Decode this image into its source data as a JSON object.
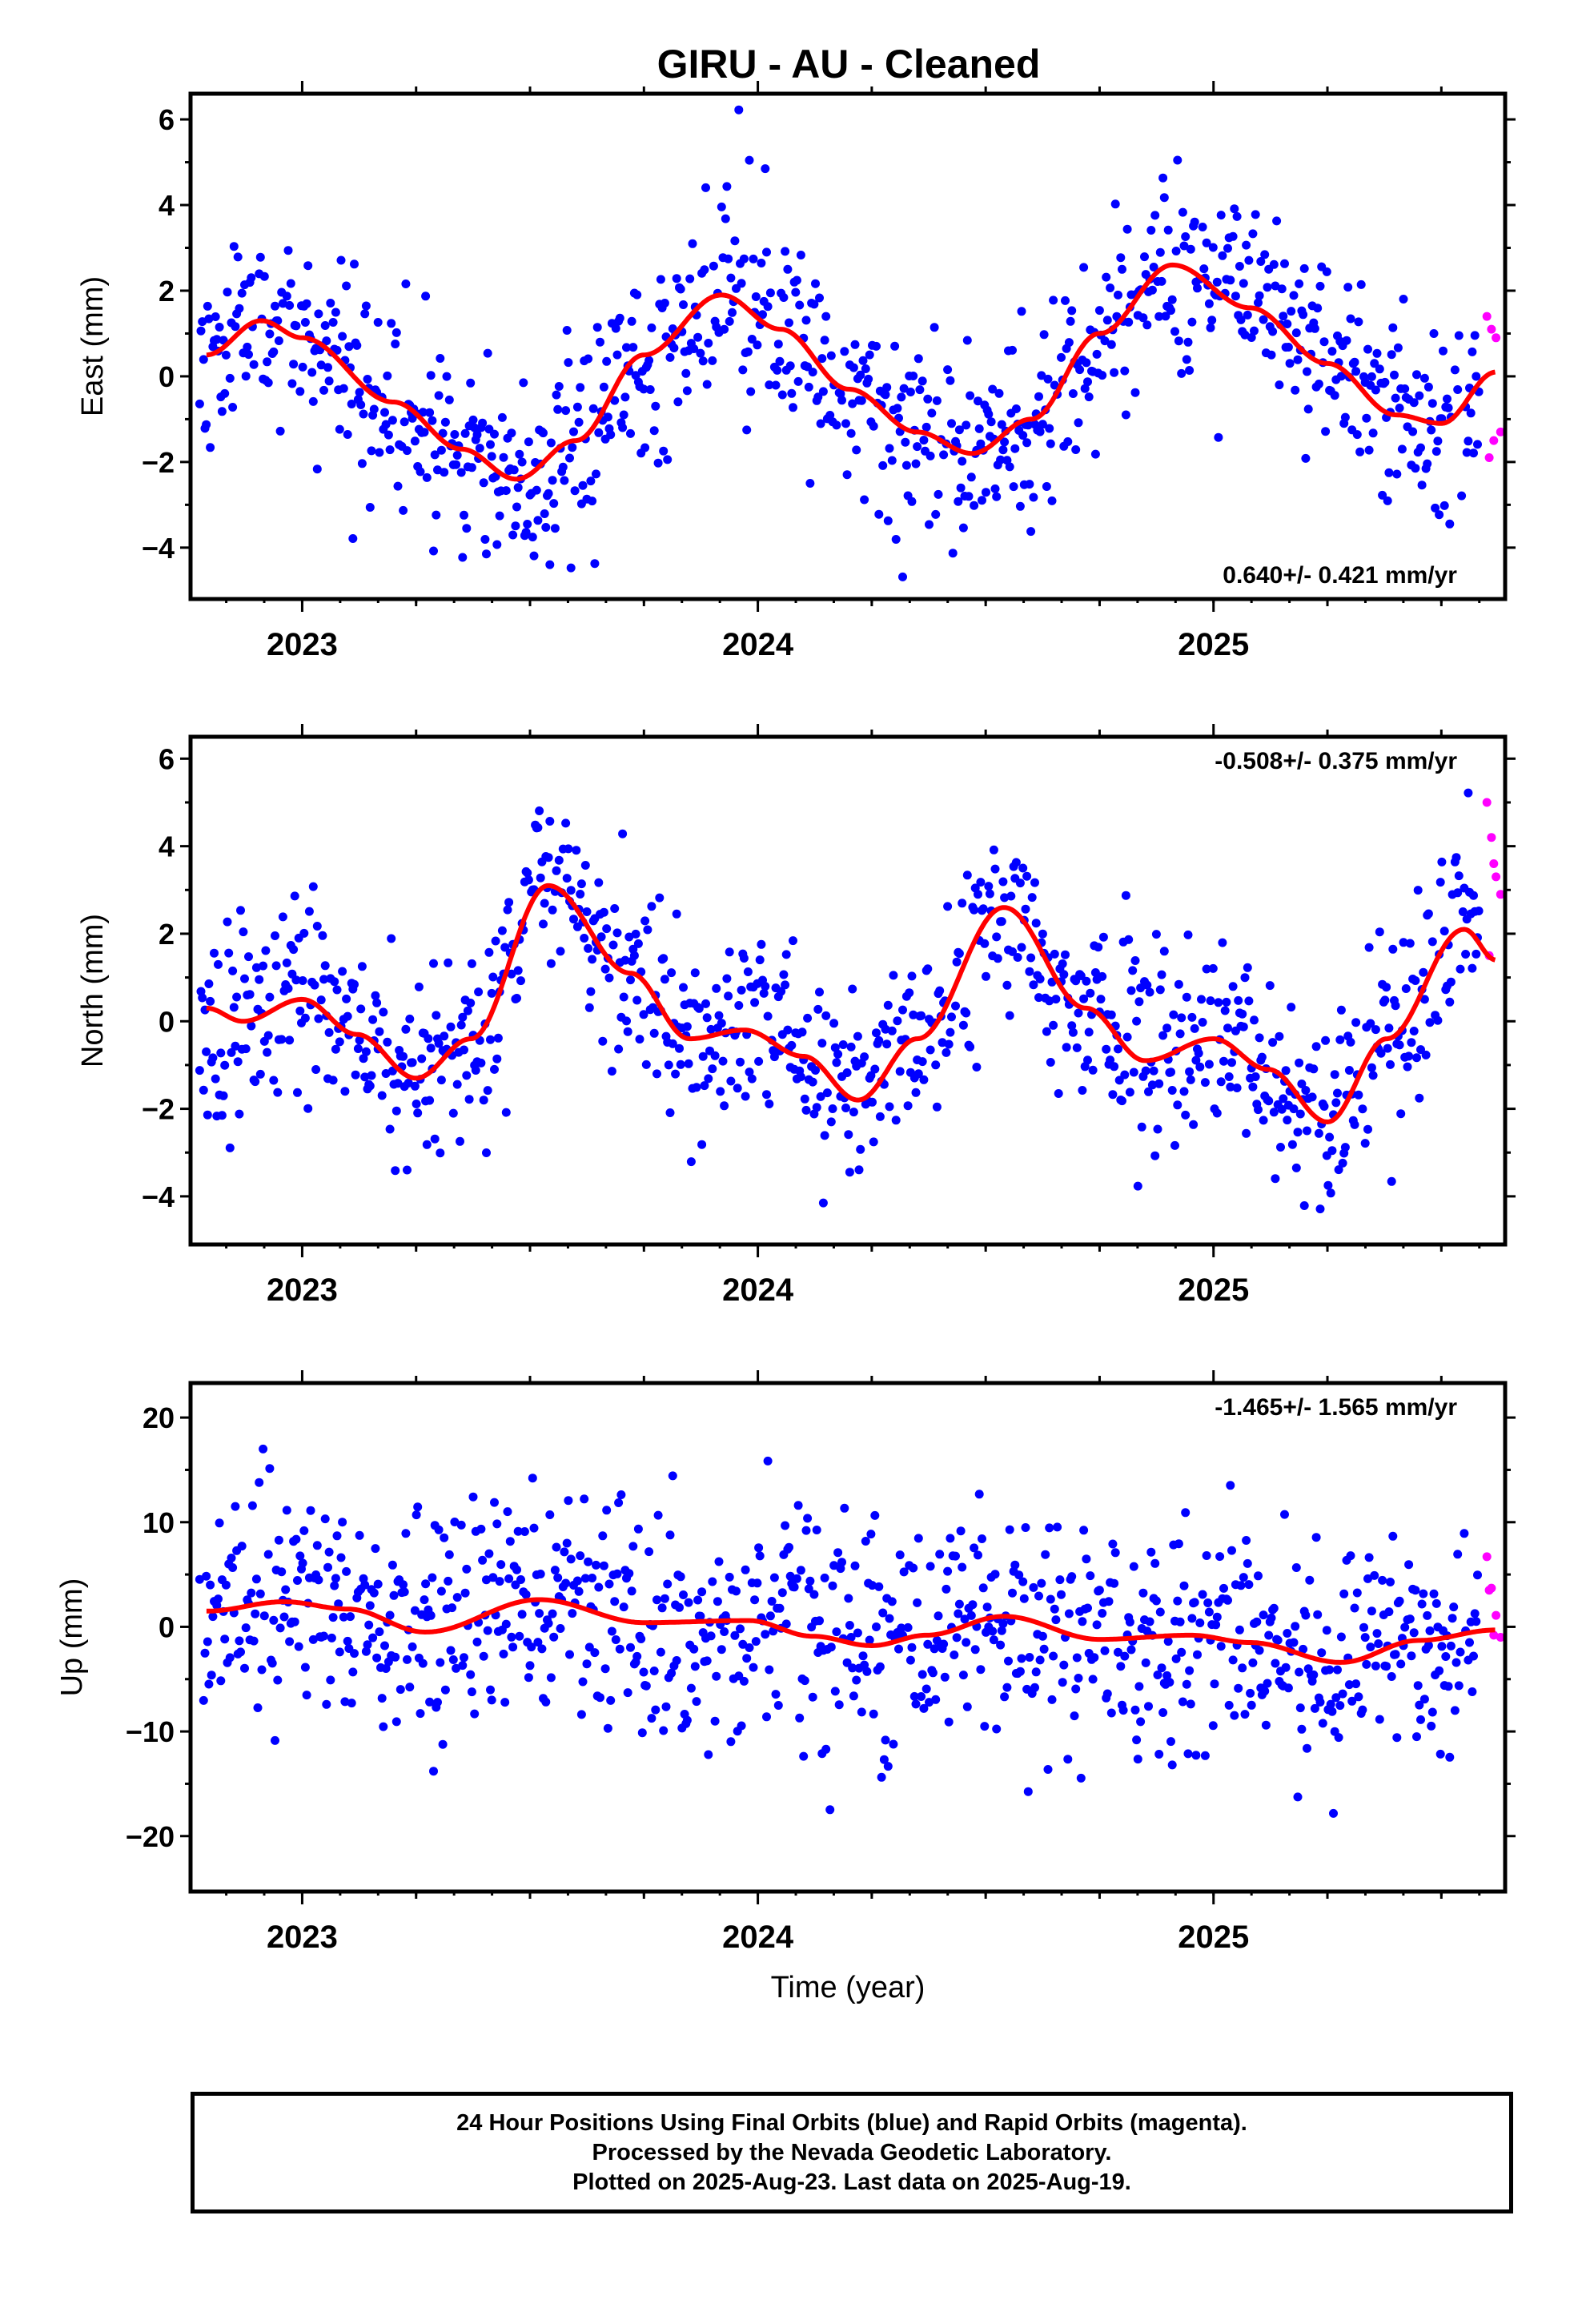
{
  "title": "GIRU  - AU - Cleaned",
  "colors": {
    "final": "#0000ff",
    "rapid": "#ff00ff",
    "fit": "#ff0000",
    "frame": "#000000"
  },
  "chart_data": [
    {
      "type": "scatter",
      "name": "East",
      "ylabel": "East (mm)",
      "xlabel": "",
      "ylim": [
        -5.2,
        6.6
      ],
      "yticks": [
        -4,
        -2,
        0,
        2,
        4,
        6
      ],
      "yticklabels": [
        "−4",
        "−2",
        "0",
        "2",
        "4",
        "6"
      ],
      "xlim": [
        2022.755,
        2025.64
      ],
      "xticks": [
        2023,
        2024,
        2025
      ],
      "xticklabels": [
        "2023",
        "2024",
        "2025"
      ],
      "rate": "0.640+/- 0.421 mm/yr",
      "rate_position": "bottom-right",
      "fit": {
        "x": [
          2022.79,
          2022.91,
          2023.0,
          2023.2,
          2023.35,
          2023.47,
          2023.6,
          2023.75,
          2023.92,
          2024.05,
          2024.2,
          2024.35,
          2024.47,
          2024.6,
          2024.75,
          2024.91,
          2025.08,
          2025.25,
          2025.4,
          2025.5,
          2025.62
        ],
        "y": [
          0.5,
          1.3,
          0.9,
          -0.6,
          -1.7,
          -2.4,
          -1.5,
          0.5,
          1.9,
          1.1,
          -0.3,
          -1.3,
          -1.8,
          -1.0,
          1.0,
          2.6,
          1.6,
          0.3,
          -0.9,
          -1.1,
          0.1
        ]
      },
      "rapid": {
        "x": [
          2025.6,
          2025.61,
          2025.62,
          2025.63,
          2025.605,
          2025.615
        ],
        "y": [
          1.4,
          1.1,
          0.9,
          -1.3,
          -1.9,
          -1.5
        ]
      },
      "noise_sd": 1.2,
      "final_end": 2025.585,
      "seed": 11
    },
    {
      "type": "scatter",
      "name": "North",
      "ylabel": "North (mm)",
      "xlabel": "",
      "ylim": [
        -5.1,
        6.5
      ],
      "yticks": [
        -4,
        -2,
        0,
        2,
        4,
        6
      ],
      "yticklabels": [
        "−4",
        "−2",
        "0",
        "2",
        "4",
        "6"
      ],
      "xlim": [
        2022.755,
        2025.64
      ],
      "xticks": [
        2023,
        2024,
        2025
      ],
      "xticklabels": [
        "2023",
        "2024",
        "2025"
      ],
      "rate": "-0.508+/- 0.375 mm/yr",
      "rate_position": "top-right",
      "fit": {
        "x": [
          2022.79,
          2022.87,
          2023.0,
          2023.12,
          2023.25,
          2023.37,
          2023.54,
          2023.72,
          2023.85,
          2023.97,
          2024.1,
          2024.22,
          2024.35,
          2024.54,
          2024.72,
          2024.85,
          2025.0,
          2025.12,
          2025.25,
          2025.38,
          2025.55,
          2025.62
        ],
        "y": [
          0.3,
          0.0,
          0.5,
          -0.3,
          -1.3,
          -0.4,
          3.1,
          1.1,
          -0.4,
          -0.2,
          -0.8,
          -1.8,
          -0.4,
          2.6,
          0.3,
          -0.9,
          -0.4,
          -1.1,
          -2.3,
          -0.4,
          2.1,
          1.4
        ]
      },
      "rapid": {
        "x": [
          2025.6,
          2025.61,
          2025.62,
          2025.63,
          2025.605,
          2025.615
        ],
        "y": [
          5.0,
          4.2,
          3.3,
          2.9,
          1.5,
          3.6
        ]
      },
      "noise_sd": 1.1,
      "final_end": 2025.585,
      "seed": 23
    },
    {
      "type": "scatter",
      "name": "Up",
      "ylabel": "Up (mm)",
      "xlabel": "Time (year)",
      "ylim": [
        -25.3,
        23.3
      ],
      "yticks": [
        -20,
        -10,
        0,
        10,
        20
      ],
      "yticklabels": [
        "−20",
        "−10",
        "0",
        "10",
        "20"
      ],
      "xlim": [
        2022.755,
        2025.64
      ],
      "xticks": [
        2023,
        2024,
        2025
      ],
      "xticklabels": [
        "2023",
        "2024",
        "2025"
      ],
      "rate": "-1.465+/- 1.565 mm/yr",
      "rate_position": "top-right",
      "fit": {
        "x": [
          2022.79,
          2022.96,
          2023.1,
          2023.27,
          2023.52,
          2023.75,
          2023.98,
          2024.12,
          2024.25,
          2024.37,
          2024.54,
          2024.75,
          2024.95,
          2025.08,
          2025.28,
          2025.45,
          2025.62
        ],
        "y": [
          1.5,
          2.4,
          1.7,
          -0.5,
          2.6,
          0.4,
          0.6,
          -0.9,
          -1.8,
          -0.8,
          1.0,
          -1.2,
          -0.8,
          -1.5,
          -3.4,
          -1.3,
          -0.3
        ]
      },
      "rapid": {
        "x": [
          2025.6,
          2025.61,
          2025.62,
          2025.63,
          2025.605,
          2025.615
        ],
        "y": [
          6.7,
          3.7,
          1.1,
          -1.0,
          3.5,
          -0.8
        ]
      },
      "noise_sd": 5.6,
      "final_end": 2025.585,
      "seed": 37
    }
  ],
  "footer": {
    "line1": "24 Hour Positions Using Final Orbits (blue) and Rapid Orbits (magenta).",
    "line2": "Processed by the Nevada Geodetic Laboratory.",
    "line3": "Plotted on 2025-Aug-23. Last data on 2025-Aug-19."
  }
}
